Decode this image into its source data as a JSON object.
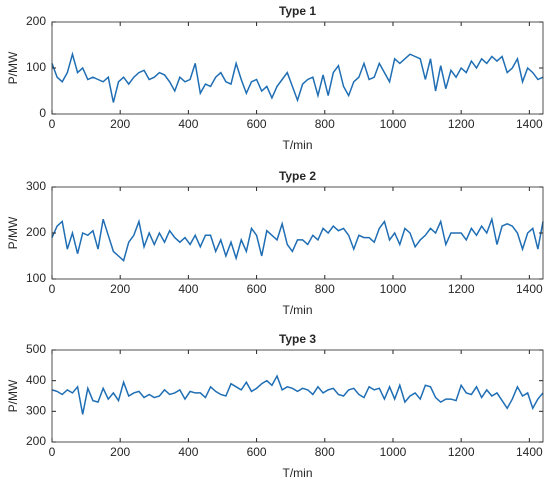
{
  "chart_data": [
    {
      "type": "line",
      "title": "Type 1",
      "xlabel": "T/min",
      "ylabel": "P/MW",
      "x": [
        0,
        15,
        30,
        45,
        60,
        75,
        90,
        105,
        120,
        135,
        150,
        165,
        180,
        195,
        210,
        225,
        240,
        255,
        270,
        285,
        300,
        315,
        330,
        345,
        360,
        375,
        390,
        405,
        420,
        435,
        450,
        465,
        480,
        495,
        510,
        525,
        540,
        555,
        570,
        585,
        600,
        615,
        630,
        645,
        660,
        675,
        690,
        705,
        720,
        735,
        750,
        765,
        780,
        795,
        810,
        825,
        840,
        855,
        870,
        885,
        900,
        915,
        930,
        945,
        960,
        975,
        990,
        1005,
        1020,
        1035,
        1050,
        1065,
        1080,
        1095,
        1110,
        1125,
        1140,
        1155,
        1170,
        1185,
        1200,
        1215,
        1230,
        1245,
        1260,
        1275,
        1290,
        1305,
        1320,
        1335,
        1350,
        1365,
        1380,
        1395,
        1410,
        1425,
        1440
      ],
      "series": [
        {
          "color": "#1f6eb4",
          "values": [
            110,
            80,
            70,
            90,
            130,
            90,
            100,
            75,
            80,
            75,
            70,
            80,
            25,
            70,
            80,
            65,
            80,
            90,
            95,
            75,
            80,
            90,
            85,
            70,
            50,
            80,
            70,
            75,
            110,
            45,
            65,
            60,
            80,
            90,
            70,
            65,
            110,
            75,
            45,
            70,
            75,
            50,
            60,
            35,
            60,
            75,
            90,
            60,
            30,
            65,
            75,
            80,
            40,
            85,
            40,
            90,
            105,
            60,
            40,
            70,
            80,
            110,
            75,
            80,
            110,
            90,
            70,
            120,
            110,
            120,
            130,
            125,
            120,
            75,
            120,
            50,
            105,
            55,
            95,
            80,
            100,
            90,
            115,
            100,
            120,
            110,
            125,
            115,
            125,
            90,
            100,
            120,
            70,
            100,
            90,
            75,
            80
          ]
        }
      ],
      "xlim": [
        0,
        1440
      ],
      "ylim": [
        0,
        200
      ],
      "xticks": [
        0,
        200,
        400,
        600,
        800,
        1000,
        1200,
        1400
      ],
      "yticks": [
        0,
        100,
        200
      ]
    },
    {
      "type": "line",
      "title": "Type 2",
      "xlabel": "T/min",
      "ylabel": "P/MW",
      "x": [
        0,
        15,
        30,
        45,
        60,
        75,
        90,
        105,
        120,
        135,
        150,
        165,
        180,
        195,
        210,
        225,
        240,
        255,
        270,
        285,
        300,
        315,
        330,
        345,
        360,
        375,
        390,
        405,
        420,
        435,
        450,
        465,
        480,
        495,
        510,
        525,
        540,
        555,
        570,
        585,
        600,
        615,
        630,
        645,
        660,
        675,
        690,
        705,
        720,
        735,
        750,
        765,
        780,
        795,
        810,
        825,
        840,
        855,
        870,
        885,
        900,
        915,
        930,
        945,
        960,
        975,
        990,
        1005,
        1020,
        1035,
        1050,
        1065,
        1080,
        1095,
        1110,
        1125,
        1140,
        1155,
        1170,
        1185,
        1200,
        1215,
        1230,
        1245,
        1260,
        1275,
        1290,
        1305,
        1320,
        1335,
        1350,
        1365,
        1380,
        1395,
        1410,
        1425,
        1440
      ],
      "series": [
        {
          "color": "#1f6eb4",
          "values": [
            190,
            215,
            225,
            165,
            200,
            155,
            200,
            195,
            205,
            165,
            230,
            195,
            160,
            150,
            140,
            180,
            195,
            225,
            170,
            200,
            175,
            200,
            180,
            205,
            190,
            180,
            190,
            175,
            195,
            170,
            195,
            195,
            160,
            185,
            150,
            180,
            145,
            185,
            160,
            210,
            195,
            150,
            205,
            195,
            185,
            220,
            175,
            160,
            185,
            185,
            175,
            195,
            185,
            210,
            200,
            215,
            205,
            210,
            195,
            165,
            195,
            190,
            190,
            180,
            210,
            225,
            185,
            200,
            175,
            210,
            200,
            170,
            185,
            195,
            210,
            200,
            225,
            175,
            200,
            200,
            200,
            185,
            210,
            195,
            215,
            200,
            230,
            175,
            215,
            220,
            215,
            200,
            165,
            200,
            210,
            165,
            225
          ]
        }
      ],
      "xlim": [
        0,
        1440
      ],
      "ylim": [
        100,
        300
      ],
      "xticks": [
        0,
        200,
        400,
        600,
        800,
        1000,
        1200,
        1400
      ],
      "yticks": [
        100,
        200,
        300
      ]
    },
    {
      "type": "line",
      "title": "Type 3",
      "xlabel": "T/min",
      "ylabel": "P/MW",
      "x": [
        0,
        15,
        30,
        45,
        60,
        75,
        90,
        105,
        120,
        135,
        150,
        165,
        180,
        195,
        210,
        225,
        240,
        255,
        270,
        285,
        300,
        315,
        330,
        345,
        360,
        375,
        390,
        405,
        420,
        435,
        450,
        465,
        480,
        495,
        510,
        525,
        540,
        555,
        570,
        585,
        600,
        615,
        630,
        645,
        660,
        675,
        690,
        705,
        720,
        735,
        750,
        765,
        780,
        795,
        810,
        825,
        840,
        855,
        870,
        885,
        900,
        915,
        930,
        945,
        960,
        975,
        990,
        1005,
        1020,
        1035,
        1050,
        1065,
        1080,
        1095,
        1110,
        1125,
        1140,
        1155,
        1170,
        1185,
        1200,
        1215,
        1230,
        1245,
        1260,
        1275,
        1290,
        1305,
        1320,
        1335,
        1350,
        1365,
        1380,
        1395,
        1410,
        1425,
        1440
      ],
      "series": [
        {
          "color": "#1f6eb4",
          "values": [
            370,
            365,
            355,
            370,
            360,
            380,
            290,
            375,
            335,
            330,
            375,
            340,
            360,
            335,
            395,
            350,
            360,
            365,
            345,
            355,
            345,
            350,
            370,
            355,
            360,
            370,
            340,
            365,
            360,
            360,
            345,
            380,
            365,
            355,
            350,
            390,
            380,
            370,
            395,
            365,
            375,
            390,
            400,
            385,
            415,
            370,
            380,
            375,
            365,
            375,
            370,
            355,
            380,
            360,
            370,
            375,
            355,
            350,
            370,
            375,
            355,
            345,
            380,
            370,
            375,
            340,
            380,
            340,
            385,
            330,
            350,
            360,
            340,
            385,
            380,
            345,
            330,
            340,
            340,
            335,
            385,
            360,
            355,
            380,
            345,
            370,
            350,
            360,
            335,
            310,
            340,
            380,
            350,
            360,
            310,
            340,
            360
          ]
        }
      ],
      "xlim": [
        0,
        1440
      ],
      "ylim": [
        200,
        500
      ],
      "xticks": [
        0,
        200,
        400,
        600,
        800,
        1000,
        1200,
        1400
      ],
      "yticks": [
        200,
        300,
        400,
        500
      ]
    }
  ]
}
